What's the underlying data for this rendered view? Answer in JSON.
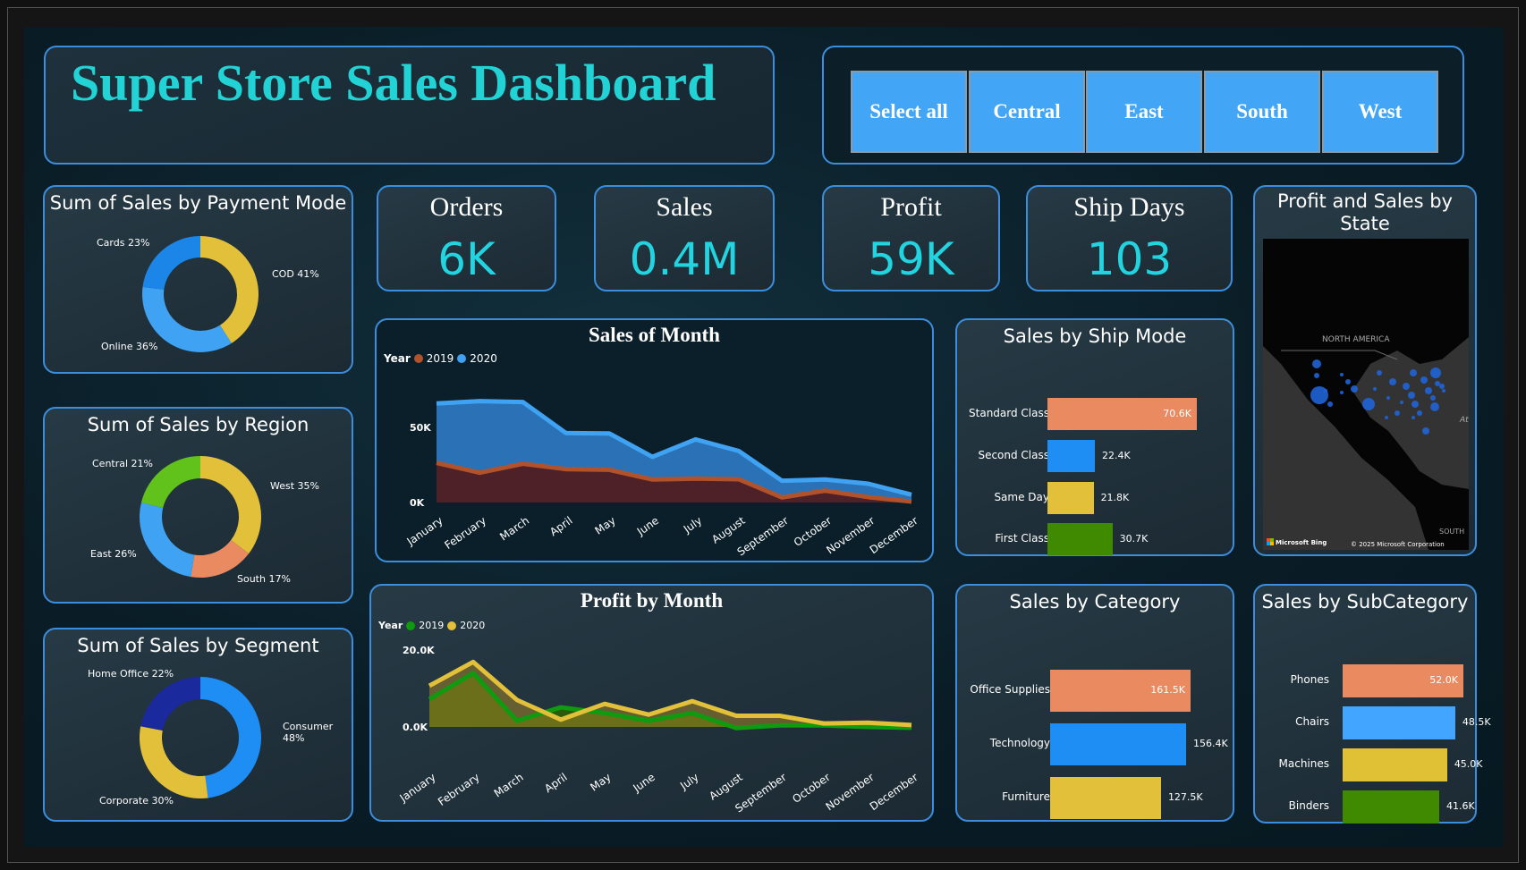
{
  "header": {
    "title": "Super Store Sales Dashboard"
  },
  "region_slicer": {
    "buttons": [
      "Select all",
      "Central",
      "East",
      "South",
      "West"
    ]
  },
  "kpis": [
    {
      "label": "Orders",
      "value": "6K"
    },
    {
      "label": "Sales",
      "value": "0.4M"
    },
    {
      "label": "Profit",
      "value": "59K"
    },
    {
      "label": "Ship Days",
      "value": "103"
    }
  ],
  "colors": {
    "accent": "#22d3d6",
    "border": "#3b8ede",
    "slicer": "#42a5f5"
  },
  "chart_data": [
    {
      "id": "payment",
      "type": "pie",
      "title": "Sum of Sales by Payment Mode",
      "slices": [
        {
          "label": "COD 41%",
          "name": "COD",
          "value": 41,
          "color": "#e3c03a"
        },
        {
          "label": "Online 36%",
          "name": "Online",
          "value": 36,
          "color": "#3fa2f2"
        },
        {
          "label": "Cards 23%",
          "name": "Cards",
          "value": 23,
          "color": "#1c86e8"
        }
      ]
    },
    {
      "id": "region",
      "type": "pie",
      "title": "Sum of Sales by Region",
      "slices": [
        {
          "label": "West 35%",
          "name": "West",
          "value": 35,
          "color": "#e3c03a"
        },
        {
          "label": "South 17%",
          "name": "South",
          "value": 17,
          "color": "#e98a60"
        },
        {
          "label": "East 26%",
          "name": "East",
          "value": 26,
          "color": "#3fa2f2"
        },
        {
          "label": "Central 21%",
          "name": "Central",
          "value": 21,
          "color": "#62c21c"
        }
      ]
    },
    {
      "id": "segment",
      "type": "pie",
      "title": "Sum of Sales by Segment",
      "slices": [
        {
          "label": "Consumer 48%",
          "name": "Consumer",
          "value": 48,
          "color": "#1e8ef5"
        },
        {
          "label": "Corporate 30%",
          "name": "Corporate",
          "value": 30,
          "color": "#e3c03a"
        },
        {
          "label": "Home Office 22%",
          "name": "Home Office",
          "value": 22,
          "color": "#1a2a9c"
        }
      ]
    },
    {
      "id": "sales_month",
      "type": "area",
      "title": "Sales of Month",
      "legend_title": "Year",
      "stacked": true,
      "categories": [
        "January",
        "February",
        "March",
        "April",
        "May",
        "June",
        "July",
        "August",
        "September",
        "October",
        "November",
        "December"
      ],
      "yticks": [
        "0K",
        "50K"
      ],
      "ylim": [
        0,
        70000
      ],
      "series": [
        {
          "name": "2019",
          "color": "#b2522a",
          "fill": "#4e2128",
          "values": [
            26400,
            19800,
            25800,
            22200,
            21800,
            15300,
            15900,
            15500,
            3400,
            7900,
            3600,
            600
          ]
        },
        {
          "name": "2020",
          "color": "#3fa2f2",
          "fill": "#2a72b5",
          "values": [
            39500,
            47700,
            41100,
            24000,
            24200,
            15100,
            26100,
            18800,
            11100,
            7400,
            8900,
            4600
          ]
        }
      ]
    },
    {
      "id": "profit_month",
      "type": "area",
      "title": "Profit by Month",
      "legend_title": "Year",
      "stacked": false,
      "categories": [
        "January",
        "February",
        "March",
        "April",
        "May",
        "June",
        "July",
        "August",
        "September",
        "October",
        "November",
        "December"
      ],
      "yticks": [
        "0.0K",
        "20.0K"
      ],
      "ylim": [
        0,
        20000
      ],
      "series": [
        {
          "name": "2019",
          "color": "#0f9a0f",
          "fill": "#2a5a0a",
          "values": [
            7200,
            14000,
            1600,
            5100,
            3600,
            1600,
            3600,
            -300,
            400,
            400,
            0,
            -200
          ]
        },
        {
          "name": "2020",
          "color": "#e3c03a",
          "fill": "rgba(160,130,40,0.55)",
          "values": [
            10700,
            16900,
            7000,
            1900,
            6000,
            3200,
            6700,
            2900,
            2900,
            900,
            1100,
            500
          ]
        }
      ]
    },
    {
      "id": "ship_mode",
      "type": "bar",
      "title": "Sales by Ship Mode",
      "categories": [
        "Standard Class",
        "Second Class",
        "Same Day",
        "First Class"
      ],
      "values": [
        70600,
        22400,
        21800,
        30700
      ],
      "labels": [
        "70.6K",
        "22.4K",
        "21.8K",
        "30.7K"
      ],
      "colors": [
        "#e98a60",
        "#1e8ef5",
        "#e3c03a",
        "#3f8a00"
      ]
    },
    {
      "id": "category",
      "type": "bar",
      "title": "Sales by Category",
      "categories": [
        "Office Supplies",
        "Technology",
        "Furniture"
      ],
      "values": [
        161500,
        156400,
        127500
      ],
      "labels": [
        "161.5K",
        "156.4K",
        "127.5K"
      ],
      "colors": [
        "#e98a60",
        "#1e8ef5",
        "#e3c03a"
      ]
    },
    {
      "id": "subcategory",
      "type": "bar",
      "title": "Sales by SubCategory",
      "categories": [
        "Phones",
        "Chairs",
        "Machines",
        "Binders"
      ],
      "values": [
        52000,
        48500,
        45000,
        41600
      ],
      "labels": [
        "52.0K",
        "48.5K",
        "45.0K",
        "41.6K"
      ],
      "colors": [
        "#e98a60",
        "#42a5ff",
        "#e0c035",
        "#3f8a00"
      ]
    }
  ],
  "map": {
    "title": "Profit and Sales by State",
    "labels": [
      "NORTH AMERICA",
      "SOUTH",
      "At"
    ],
    "attribution": "© 2025 Microsoft Corporation",
    "provider": "Microsoft Bing"
  }
}
